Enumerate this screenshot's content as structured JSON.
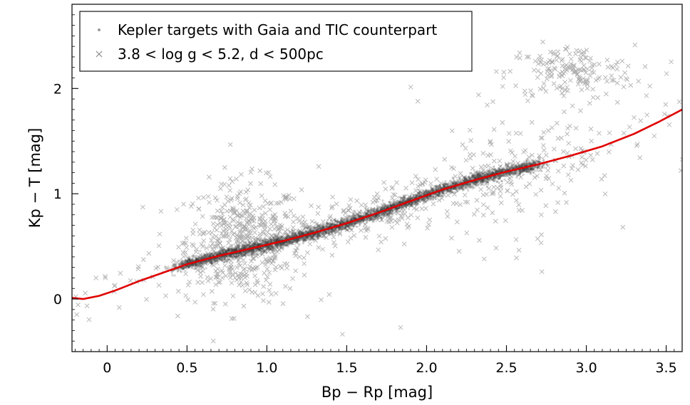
{
  "chart_data": {
    "type": "scatter",
    "title": "",
    "xlabel": "Bp − Rp [mag]",
    "ylabel": "Kp − T [mag]",
    "xlim": [
      -0.22,
      3.6
    ],
    "ylim": [
      -0.5,
      2.8
    ],
    "x_ticks": [
      {
        "value": 0,
        "label": "0"
      },
      {
        "value": 0.5,
        "label": "0.5"
      },
      {
        "value": 1.0,
        "label": "1.0"
      },
      {
        "value": 1.5,
        "label": "1.5"
      },
      {
        "value": 2.0,
        "label": "2.0"
      },
      {
        "value": 2.5,
        "label": "2.5"
      },
      {
        "value": 3.0,
        "label": "3.0"
      },
      {
        "value": 3.5,
        "label": "3.5"
      }
    ],
    "y_ticks": [
      {
        "value": 0,
        "label": "0"
      },
      {
        "value": 1,
        "label": "1"
      },
      {
        "value": 2,
        "label": "2"
      }
    ],
    "legend": {
      "position": "top-left",
      "entries": [
        {
          "label": "Kepler targets with Gaia and TIC counterpart",
          "marker": "dot"
        },
        {
          "label": "3.8 < log g < 5.2, d < 500pc",
          "marker": "x"
        }
      ]
    },
    "series": [
      {
        "name": "Kepler targets with Gaia and TIC counterpart",
        "kind": "density",
        "color": "#3a3a3a",
        "description_points": [
          {
            "x": 0.5,
            "y": 0.33
          },
          {
            "x": 0.8,
            "y": 0.45
          },
          {
            "x": 1.0,
            "y": 0.52
          },
          {
            "x": 1.3,
            "y": 0.63
          },
          {
            "x": 1.6,
            "y": 0.76
          },
          {
            "x": 1.8,
            "y": 0.86
          },
          {
            "x": 2.0,
            "y": 0.98
          },
          {
            "x": 2.3,
            "y": 1.1
          },
          {
            "x": 2.6,
            "y": 1.23
          }
        ]
      },
      {
        "name": "3.8 < log g < 5.2, d < 500pc",
        "kind": "scatter-x",
        "color": "#a8a8a8",
        "clusters": [
          {
            "x": 0.85,
            "y": 0.55,
            "sx": 0.18,
            "sy": 0.28,
            "n": 500
          },
          {
            "x": 2.9,
            "y": 2.15,
            "sx": 0.2,
            "sy": 0.13,
            "n": 180
          },
          {
            "x": 1.6,
            "y": 0.72,
            "sx": 0.8,
            "sy": 0.12,
            "n": 450
          },
          {
            "x": 2.6,
            "y": 1.0,
            "sx": 0.6,
            "sy": 0.4,
            "n": 160
          }
        ]
      },
      {
        "name": "fit",
        "kind": "line",
        "color": "#e00000",
        "x": [
          -0.22,
          -0.15,
          -0.05,
          0.05,
          0.2,
          0.35,
          0.5,
          0.7,
          0.9,
          1.1,
          1.3,
          1.5,
          1.7,
          1.9,
          2.1,
          2.3,
          2.5,
          2.7,
          2.9,
          3.1,
          3.3,
          3.45,
          3.6
        ],
        "y": [
          0.01,
          0.0,
          0.03,
          0.08,
          0.17,
          0.25,
          0.33,
          0.41,
          0.48,
          0.55,
          0.63,
          0.72,
          0.82,
          0.93,
          1.04,
          1.13,
          1.21,
          1.28,
          1.36,
          1.45,
          1.57,
          1.68,
          1.8
        ]
      }
    ]
  }
}
